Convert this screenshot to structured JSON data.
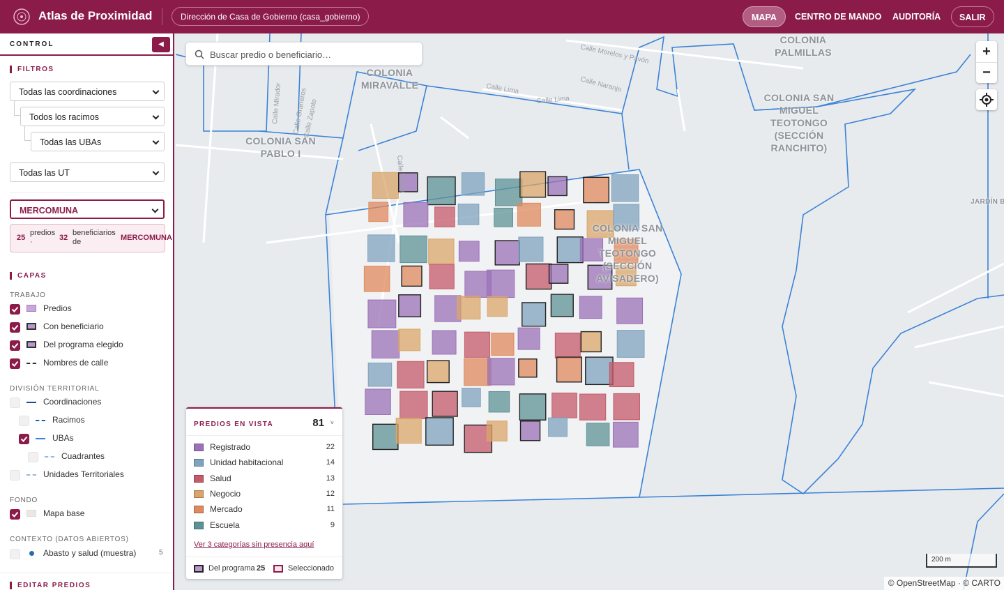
{
  "header": {
    "brand": "Atlas de Proximidad",
    "context": "Dirección de Casa de Gobierno (casa_gobierno)",
    "nav": [
      "MAPA",
      "CENTRO DE MANDO",
      "AUDITORÍA"
    ],
    "active_nav": "MAPA",
    "logout": "SALIR"
  },
  "sidebar": {
    "title": "CONTROL",
    "filters": {
      "title": "FILTROS",
      "selects": [
        "Todas las coordinaciones",
        "Todos los racimos",
        "Todas las UBAs",
        "Todas las UT"
      ],
      "program": "MERCOMUNA",
      "summary": {
        "predios": 25,
        "predios_label": "predios ·",
        "beneficiarios": 32,
        "beneficiarios_label": "beneficiarios de",
        "program": "MERCOMUNA"
      }
    },
    "layers": {
      "title": "CAPAS",
      "groups": [
        {
          "title": "TRABAJO",
          "items": [
            {
              "label": "Predios",
              "checked": true
            },
            {
              "label": "Con beneficiario",
              "checked": true
            },
            {
              "label": "Del programa elegido",
              "checked": true
            },
            {
              "label": "Nombres de calle",
              "checked": true
            }
          ]
        },
        {
          "title": "DIVISIÓN TERRITORIAL",
          "items": [
            {
              "label": "Coordinaciones",
              "checked": false
            },
            {
              "label": "Racimos",
              "checked": false
            },
            {
              "label": "UBAs",
              "checked": true
            },
            {
              "label": "Cuadrantes",
              "checked": false
            },
            {
              "label": "Unidades Territoriales",
              "checked": false
            }
          ]
        },
        {
          "title": "FONDO",
          "items": [
            {
              "label": "Mapa base",
              "checked": true
            }
          ]
        },
        {
          "title": "CONTEXTO (DATOS ABIERTOS)",
          "items": [
            {
              "label": "Abasto y salud (muestra)",
              "checked": false,
              "count": 5
            }
          ]
        }
      ]
    },
    "edit": {
      "title": "EDITAR PREDIOS"
    }
  },
  "map": {
    "search_placeholder": "Buscar predio o beneficiario…",
    "zoom_in": "+",
    "zoom_out": "−",
    "places": [
      "COLONIA MIRAVALLE",
      "COLONIA SAN PABLO I",
      "COLONIA PALMILLAS",
      "COLONIA SAN MIGUEL TEOTONGO (SECCIÓN RANCHITO)",
      "COLONIA SAN MIGUEL TEOTONGO (SECCIÓN AVISADERO)",
      "JARDÍN B"
    ],
    "streets": [
      "Calle Morelos y Pavón",
      "Calle Naranjo",
      "Calle Lima",
      "Calle Lima",
      "Calle Mirador",
      "Calle Graneros",
      "Calle Zapote",
      "Calle Toluca"
    ],
    "scale": "200 m",
    "attribution": "© OpenStreetMap · © CARTO"
  },
  "legend": {
    "title": "PREDIOS EN VISTA",
    "total": 81,
    "categories": [
      {
        "name": "Registrado",
        "count": 22,
        "color": "#9b72b8"
      },
      {
        "name": "Unidad habitacional",
        "count": 14,
        "color": "#7fa3bf"
      },
      {
        "name": "Salud",
        "count": 13,
        "color": "#c45a6a"
      },
      {
        "name": "Negocio",
        "count": 12,
        "color": "#d9a56a"
      },
      {
        "name": "Mercado",
        "count": 11,
        "color": "#df8a5e"
      },
      {
        "name": "Escuela",
        "count": 9,
        "color": "#5d9397"
      }
    ],
    "more_link": "Ver 3 categorías sin presencia aquí",
    "program_label": "Del programa",
    "program_count": 25,
    "selected_label": "Seleccionado"
  }
}
